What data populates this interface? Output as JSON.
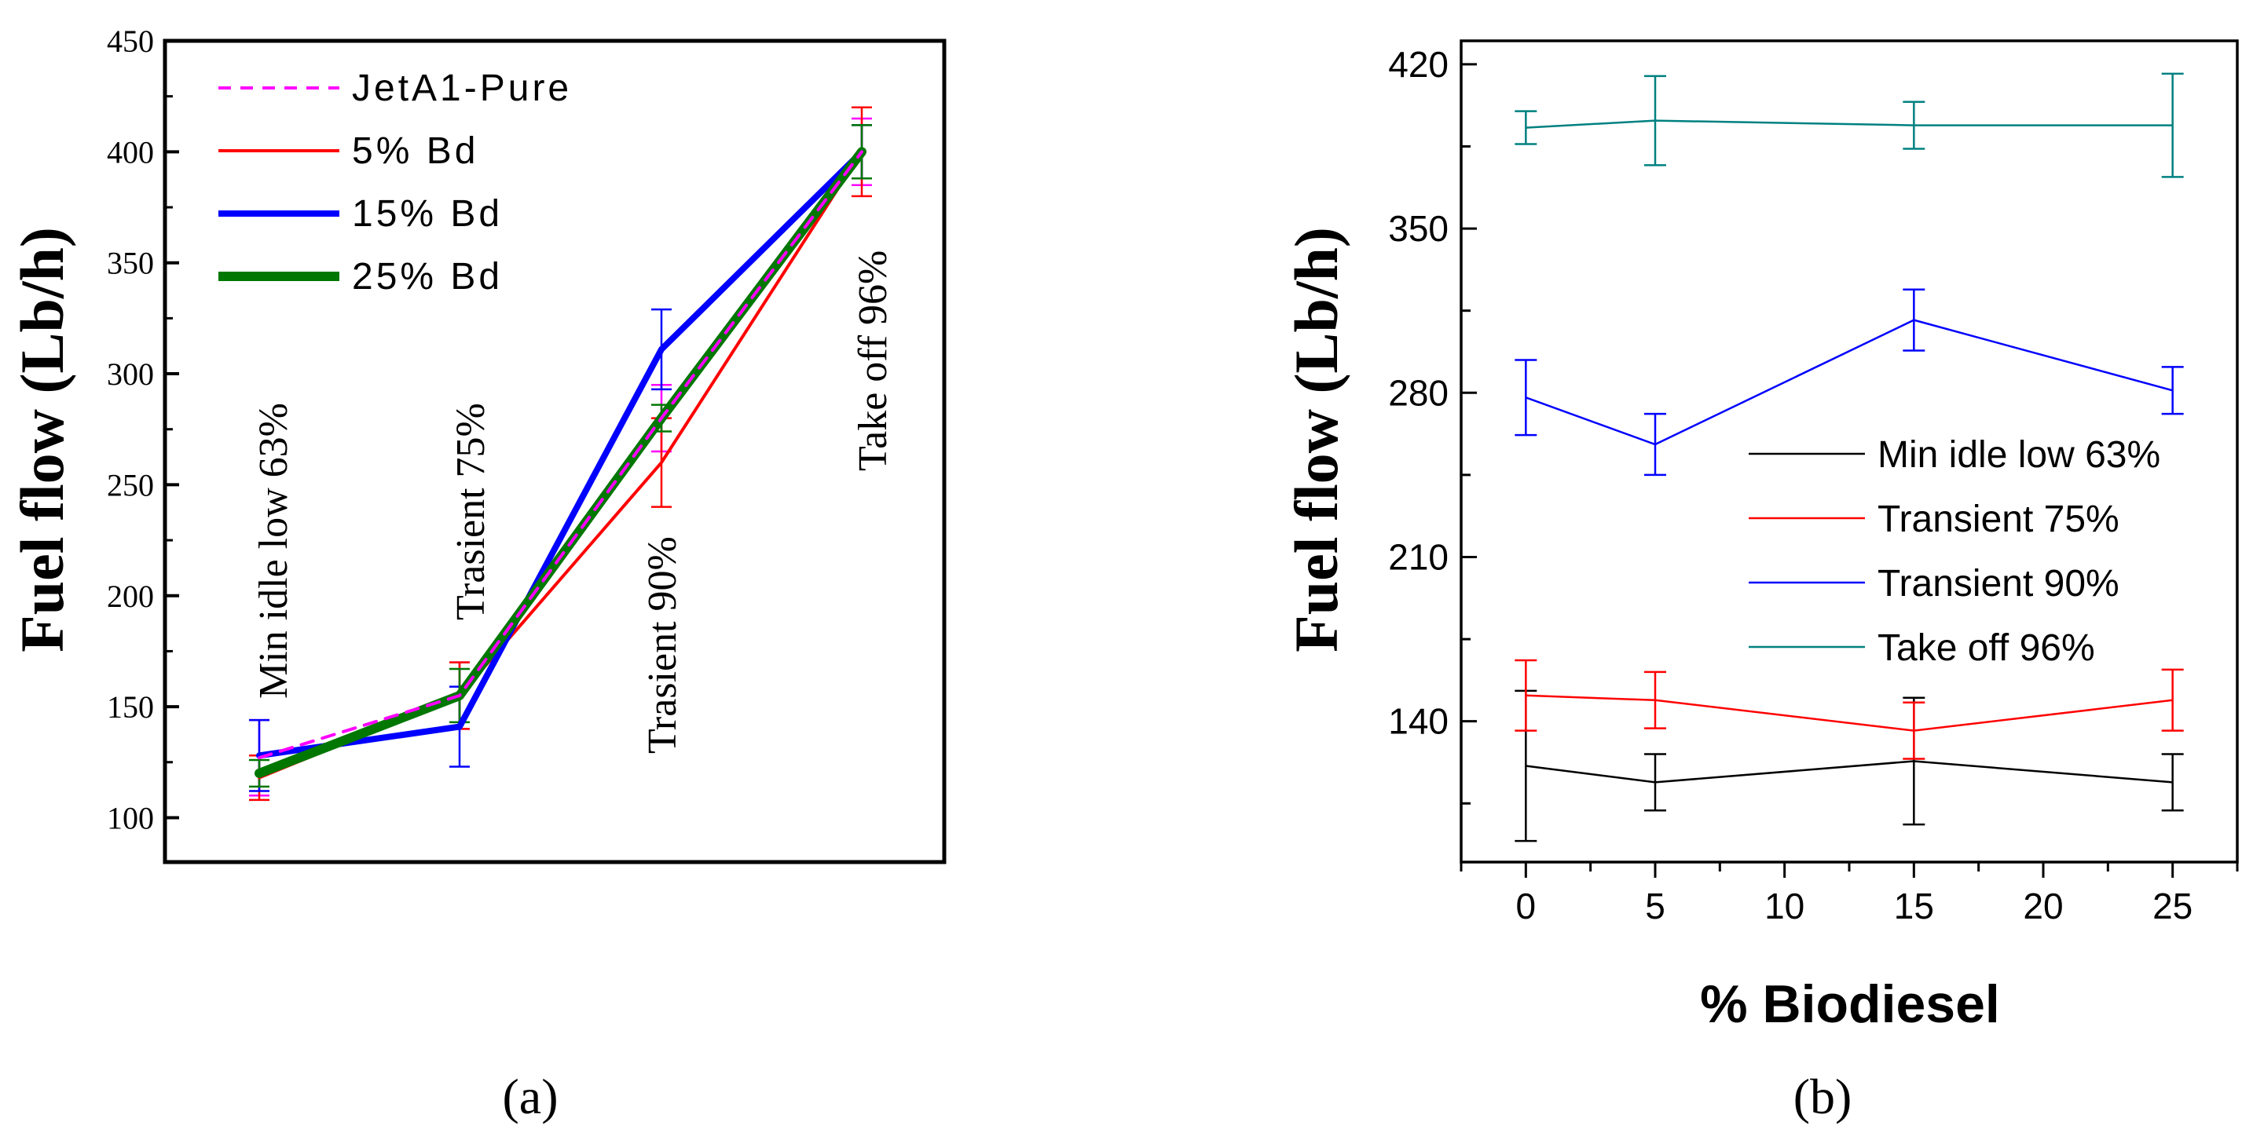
{
  "panel_a_label": "(a)",
  "panel_b_label": "(b)",
  "chart_data": [
    {
      "id": "a",
      "type": "line",
      "title": "",
      "xlabel": "",
      "ylabel": "Fuel flow (Lb/h)",
      "ylim": [
        80,
        450
      ],
      "yticks": [
        100,
        150,
        200,
        250,
        300,
        350,
        400,
        450
      ],
      "grid": false,
      "legend_position": "top-left",
      "categories": [
        "Min idle low 63%",
        "Trasient 75%",
        "Trasient 90%",
        "Take off 96%"
      ],
      "series": [
        {
          "name": "JetA1-Pure",
          "color": "#ff00ff",
          "dash": true,
          "width": 4,
          "values": [
            127,
            155,
            280,
            400
          ],
          "err": [
            17,
            15,
            15,
            15
          ]
        },
        {
          "name": "5% Bd",
          "color": "#ff0000",
          "dash": false,
          "width": 4,
          "values": [
            118,
            155,
            260,
            400
          ],
          "err": [
            10,
            15,
            20,
            20
          ]
        },
        {
          "name": "15% Bd",
          "color": "#0000ff",
          "dash": false,
          "width": 8,
          "values": [
            128,
            141,
            311,
            400
          ],
          "err": [
            16,
            18,
            18,
            12
          ]
        },
        {
          "name": "25% Bd",
          "color": "#007700",
          "dash": false,
          "width": 12,
          "values": [
            120,
            155,
            280,
            400
          ],
          "err": [
            6,
            12,
            6,
            12
          ]
        }
      ]
    },
    {
      "id": "b",
      "type": "line",
      "title": "",
      "xlabel": "% Biodiesel",
      "ylabel": "Fuel flow (Lb/h)",
      "xlim": [
        -2.5,
        27.5
      ],
      "ylim": [
        80,
        430
      ],
      "xticks": [
        0,
        5,
        10,
        15,
        20,
        25
      ],
      "yticks": [
        140,
        210,
        280,
        350,
        420
      ],
      "grid": false,
      "legend_position": "center-right",
      "x": [
        0,
        5,
        15,
        25
      ],
      "series": [
        {
          "name": "Min idle low 63%",
          "color": "#000000",
          "values": [
            121,
            114,
            123,
            114
          ],
          "err": [
            32,
            12,
            27,
            12
          ]
        },
        {
          "name": "Transient 75%",
          "color": "#ff0000",
          "values": [
            151,
            149,
            136,
            149
          ],
          "err": [
            15,
            12,
            12,
            13
          ]
        },
        {
          "name": "Transient 90%",
          "color": "#0000ff",
          "values": [
            278,
            258,
            311,
            281
          ],
          "err": [
            16,
            13,
            13,
            10
          ]
        },
        {
          "name": "Take off 96%",
          "color": "#008080",
          "values": [
            393,
            396,
            394,
            394
          ],
          "err": [
            7,
            19,
            10,
            22
          ]
        }
      ]
    }
  ]
}
